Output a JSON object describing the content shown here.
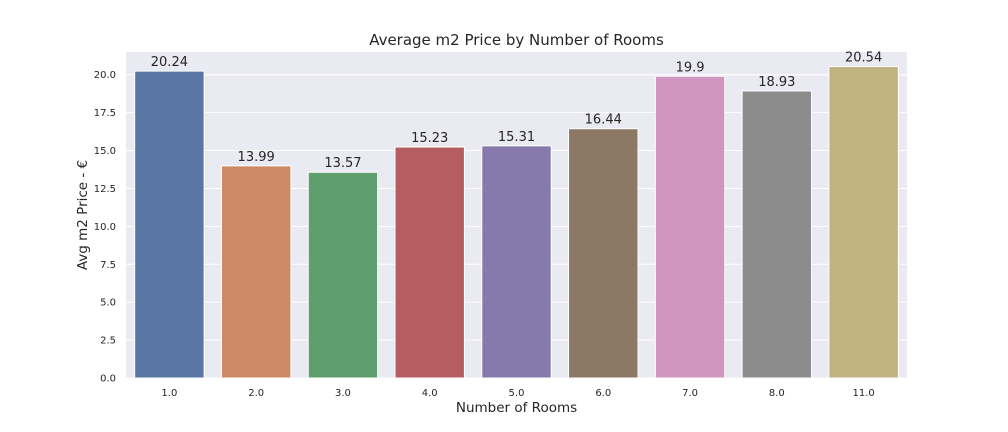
{
  "chart_data": {
    "type": "bar",
    "title": "Average m2 Price by Number of Rooms",
    "xlabel": "Number of Rooms",
    "ylabel": "Avg m2 Price - €",
    "categories": [
      "1.0",
      "2.0",
      "3.0",
      "4.0",
      "5.0",
      "6.0",
      "7.0",
      "8.0",
      "11.0"
    ],
    "values": [
      20.24,
      13.99,
      13.57,
      15.23,
      15.31,
      16.44,
      19.9,
      18.93,
      20.54
    ],
    "data_labels": [
      "20.24",
      "13.99",
      "13.57",
      "15.23",
      "15.31",
      "16.44",
      "19.9",
      "18.93",
      "20.54"
    ],
    "yticks": [
      "0.0",
      "2.5",
      "5.0",
      "7.5",
      "10.0",
      "12.5",
      "15.0",
      "17.5",
      "20.0"
    ],
    "ylim": [
      0,
      21.5
    ],
    "grid": true,
    "legend": "none",
    "bar_colors": [
      "#5975a4",
      "#cc8963",
      "#5f9e6e",
      "#b55d60",
      "#857aab",
      "#8d7866",
      "#d095bf",
      "#8c8c8c",
      "#c1b37f"
    ],
    "plot_background": "#eaeaf2",
    "grid_color": "#ffffff"
  }
}
